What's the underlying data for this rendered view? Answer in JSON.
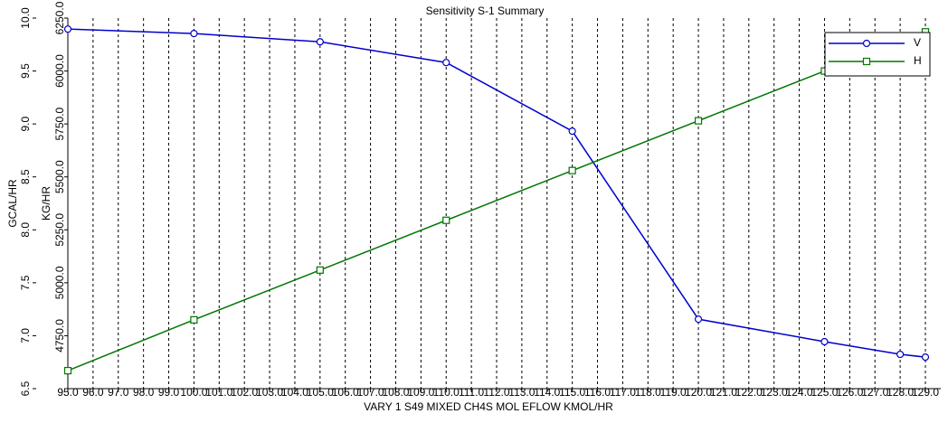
{
  "chart_data": {
    "type": "line",
    "title": "Sensitivity S-1 Summary",
    "xlabel": "VARY   1 S49 MIXED CH4S MOL EFLOW  KMOL/HR",
    "ylabel": "GCAL/HR",
    "y2label": "KG/HR",
    "xlim": [
      95,
      129
    ],
    "xticks": [
      {
        "value": 95,
        "label": "95.0"
      },
      {
        "value": 96,
        "label": "96.0"
      },
      {
        "value": 97,
        "label": "97.0"
      },
      {
        "value": 98,
        "label": "98.0"
      },
      {
        "value": 99,
        "label": "99.0"
      },
      {
        "value": 100,
        "label": "100.0"
      },
      {
        "value": 101,
        "label": "101.0"
      },
      {
        "value": 102,
        "label": "102.0"
      },
      {
        "value": 103,
        "label": "103.0"
      },
      {
        "value": 104,
        "label": "104.0"
      },
      {
        "value": 105,
        "label": "105.0"
      },
      {
        "value": 106,
        "label": "106.0"
      },
      {
        "value": 107,
        "label": "107.0"
      },
      {
        "value": 108,
        "label": "108.0"
      },
      {
        "value": 109,
        "label": "109.0"
      },
      {
        "value": 110,
        "label": "110.0"
      },
      {
        "value": 111,
        "label": "111.0"
      },
      {
        "value": 112,
        "label": "112.0"
      },
      {
        "value": 113,
        "label": "113.0"
      },
      {
        "value": 114,
        "label": "114.0"
      },
      {
        "value": 115,
        "label": "115.0"
      },
      {
        "value": 116,
        "label": "116.0"
      },
      {
        "value": 117,
        "label": "117.0"
      },
      {
        "value": 118,
        "label": "118.0"
      },
      {
        "value": 119,
        "label": "119.0"
      },
      {
        "value": 120,
        "label": "120.0"
      },
      {
        "value": 121,
        "label": "121.0"
      },
      {
        "value": 122,
        "label": "122.0"
      },
      {
        "value": 123,
        "label": "123.0"
      },
      {
        "value": 124,
        "label": "124.0"
      },
      {
        "value": 125,
        "label": "125.0"
      },
      {
        "value": 126,
        "label": "126.0"
      },
      {
        "value": 127,
        "label": "127.0"
      },
      {
        "value": 128,
        "label": "128.0"
      },
      {
        "value": 129,
        "label": "129.0"
      }
    ],
    "ylim": [
      6.5,
      10
    ],
    "yticks": [
      6.5,
      {
        "value": 7,
        "label": "7.0"
      },
      7.5,
      {
        "value": 8,
        "label": "8.0"
      },
      8.5,
      {
        "value": 9,
        "label": "9.0"
      },
      9.5,
      {
        "value": 10,
        "label": "10.0"
      }
    ],
    "y2lim": [
      4500,
      6250
    ],
    "y2ticks": [
      {
        "value": 4750,
        "label": "4750.0"
      },
      {
        "value": 5000,
        "label": "5000.0"
      },
      {
        "value": 5250,
        "label": "5250.0"
      },
      {
        "value": 5500,
        "label": "5500.0"
      },
      {
        "value": 5750,
        "label": "5750.0"
      },
      {
        "value": 6000,
        "label": "6000.0"
      },
      {
        "value": 6250,
        "label": "6250.0"
      }
    ],
    "grid": true,
    "legend": "top-right",
    "series": [
      {
        "name": "V",
        "color": "#0000cc",
        "marker": "circle",
        "axis": "y2",
        "x": [
          95,
          100,
          105,
          110,
          115,
          120,
          125,
          128,
          129
        ],
        "values": [
          6198,
          6177,
          6138,
          6040,
          5716,
          4828,
          4722,
          4662,
          4649
        ]
      },
      {
        "name": "H",
        "color": "#007700",
        "marker": "square",
        "x": [
          95,
          100,
          105,
          110,
          115,
          120,
          125,
          129
        ],
        "values": [
          6.67,
          7.15,
          7.62,
          8.09,
          8.56,
          9.03,
          9.5,
          9.87
        ]
      }
    ]
  }
}
